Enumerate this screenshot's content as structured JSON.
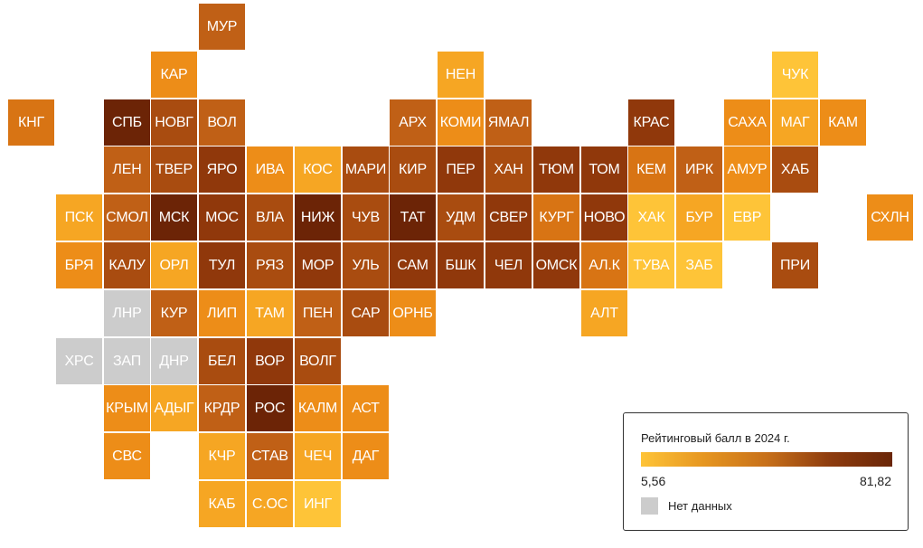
{
  "colors": {
    "c1": "#fec438",
    "c2": "#f6a623",
    "c3": "#ed8d18",
    "c4": "#d87414",
    "c5": "#c06016",
    "c6": "#a94c10",
    "c7": "#90380b",
    "c8": "#6c2406",
    "nodata": "#cccccc"
  },
  "legend": {
    "title": "Рейтинговый балл в 2024 г.",
    "min": "5,56",
    "max": "81,82",
    "no_data_label": "Нет данных"
  },
  "regions": [
    {
      "label": "МУР",
      "row": 0,
      "col": 4,
      "color": "c5"
    },
    {
      "label": "КАР",
      "row": 1,
      "col": 3,
      "color": "c3"
    },
    {
      "label": "НЕН",
      "row": 1,
      "col": 9,
      "color": "c2"
    },
    {
      "label": "ЧУК",
      "row": 1,
      "col": 16,
      "color": "c1"
    },
    {
      "label": "КНГ",
      "row": 2,
      "col": 0,
      "color": "c4"
    },
    {
      "label": "СПБ",
      "row": 2,
      "col": 2,
      "color": "c8"
    },
    {
      "label": "НОВГ",
      "row": 2,
      "col": 3,
      "color": "c6"
    },
    {
      "label": "ВОЛ",
      "row": 2,
      "col": 4,
      "color": "c5"
    },
    {
      "label": "АРХ",
      "row": 2,
      "col": 8,
      "color": "c5"
    },
    {
      "label": "КОМИ",
      "row": 2,
      "col": 9,
      "color": "c3"
    },
    {
      "label": "ЯМАЛ",
      "row": 2,
      "col": 10,
      "color": "c5"
    },
    {
      "label": "КРАС",
      "row": 2,
      "col": 13,
      "color": "c7"
    },
    {
      "label": "САХА",
      "row": 2,
      "col": 15,
      "color": "c3"
    },
    {
      "label": "МАГ",
      "row": 2,
      "col": 16,
      "color": "c2"
    },
    {
      "label": "КАМ",
      "row": 2,
      "col": 17,
      "color": "c3"
    },
    {
      "label": "ЛЕН",
      "row": 3,
      "col": 2,
      "color": "c5"
    },
    {
      "label": "ТВЕР",
      "row": 3,
      "col": 3,
      "color": "c6"
    },
    {
      "label": "ЯРО",
      "row": 3,
      "col": 4,
      "color": "c7"
    },
    {
      "label": "ИВА",
      "row": 3,
      "col": 5,
      "color": "c3"
    },
    {
      "label": "КОС",
      "row": 3,
      "col": 6,
      "color": "c2"
    },
    {
      "label": "МАРИ",
      "row": 3,
      "col": 7,
      "color": "c6"
    },
    {
      "label": "КИР",
      "row": 3,
      "col": 8,
      "color": "c6"
    },
    {
      "label": "ПЕР",
      "row": 3,
      "col": 9,
      "color": "c7"
    },
    {
      "label": "ХАН",
      "row": 3,
      "col": 10,
      "color": "c6"
    },
    {
      "label": "ТЮМ",
      "row": 3,
      "col": 11,
      "color": "c7"
    },
    {
      "label": "ТОМ",
      "row": 3,
      "col": 12,
      "color": "c7"
    },
    {
      "label": "КЕМ",
      "row": 3,
      "col": 13,
      "color": "c4"
    },
    {
      "label": "ИРК",
      "row": 3,
      "col": 14,
      "color": "c5"
    },
    {
      "label": "АМУР",
      "row": 3,
      "col": 15,
      "color": "c3"
    },
    {
      "label": "ХАБ",
      "row": 3,
      "col": 16,
      "color": "c6"
    },
    {
      "label": "ПСК",
      "row": 4,
      "col": 1,
      "color": "c2"
    },
    {
      "label": "СМОЛ",
      "row": 4,
      "col": 2,
      "color": "c5"
    },
    {
      "label": "МСК",
      "row": 4,
      "col": 3,
      "color": "c8"
    },
    {
      "label": "МОС",
      "row": 4,
      "col": 4,
      "color": "c7"
    },
    {
      "label": "ВЛА",
      "row": 4,
      "col": 5,
      "color": "c6"
    },
    {
      "label": "НИЖ",
      "row": 4,
      "col": 6,
      "color": "c8"
    },
    {
      "label": "ЧУВ",
      "row": 4,
      "col": 7,
      "color": "c6"
    },
    {
      "label": "ТАТ",
      "row": 4,
      "col": 8,
      "color": "c8"
    },
    {
      "label": "УДМ",
      "row": 4,
      "col": 9,
      "color": "c6"
    },
    {
      "label": "СВЕР",
      "row": 4,
      "col": 10,
      "color": "c7"
    },
    {
      "label": "КУРГ",
      "row": 4,
      "col": 11,
      "color": "c4"
    },
    {
      "label": "НОВО",
      "row": 4,
      "col": 12,
      "color": "c7"
    },
    {
      "label": "ХАК",
      "row": 4,
      "col": 13,
      "color": "c1"
    },
    {
      "label": "БУР",
      "row": 4,
      "col": 14,
      "color": "c2"
    },
    {
      "label": "ЕВР",
      "row": 4,
      "col": 15,
      "color": "c1"
    },
    {
      "label": "СХЛН",
      "row": 4,
      "col": 18,
      "color": "c3"
    },
    {
      "label": "БРЯ",
      "row": 5,
      "col": 1,
      "color": "c3"
    },
    {
      "label": "КАЛУ",
      "row": 5,
      "col": 2,
      "color": "c6"
    },
    {
      "label": "ОРЛ",
      "row": 5,
      "col": 3,
      "color": "c2"
    },
    {
      "label": "ТУЛ",
      "row": 5,
      "col": 4,
      "color": "c7"
    },
    {
      "label": "РЯЗ",
      "row": 5,
      "col": 5,
      "color": "c6"
    },
    {
      "label": "МОР",
      "row": 5,
      "col": 6,
      "color": "c7"
    },
    {
      "label": "УЛЬ",
      "row": 5,
      "col": 7,
      "color": "c6"
    },
    {
      "label": "САМ",
      "row": 5,
      "col": 8,
      "color": "c7"
    },
    {
      "label": "БШК",
      "row": 5,
      "col": 9,
      "color": "c7"
    },
    {
      "label": "ЧЕЛ",
      "row": 5,
      "col": 10,
      "color": "c7"
    },
    {
      "label": "ОМСК",
      "row": 5,
      "col": 11,
      "color": "c7"
    },
    {
      "label": "АЛ.К",
      "row": 5,
      "col": 12,
      "color": "c4"
    },
    {
      "label": "ТУВА",
      "row": 5,
      "col": 13,
      "color": "c1"
    },
    {
      "label": "ЗАБ",
      "row": 5,
      "col": 14,
      "color": "c1"
    },
    {
      "label": "ПРИ",
      "row": 5,
      "col": 16,
      "color": "c6"
    },
    {
      "label": "ЛНР",
      "row": 6,
      "col": 2,
      "color": "nodata"
    },
    {
      "label": "КУР",
      "row": 6,
      "col": 3,
      "color": "c5"
    },
    {
      "label": "ЛИП",
      "row": 6,
      "col": 4,
      "color": "c3"
    },
    {
      "label": "ТАМ",
      "row": 6,
      "col": 5,
      "color": "c2"
    },
    {
      "label": "ПЕН",
      "row": 6,
      "col": 6,
      "color": "c5"
    },
    {
      "label": "САР",
      "row": 6,
      "col": 7,
      "color": "c6"
    },
    {
      "label": "ОРНБ",
      "row": 6,
      "col": 8,
      "color": "c3"
    },
    {
      "label": "АЛТ",
      "row": 6,
      "col": 12,
      "color": "c2"
    },
    {
      "label": "ХРС",
      "row": 7,
      "col": 1,
      "color": "nodata"
    },
    {
      "label": "ЗАП",
      "row": 7,
      "col": 2,
      "color": "nodata"
    },
    {
      "label": "ДНР",
      "row": 7,
      "col": 3,
      "color": "nodata"
    },
    {
      "label": "БЕЛ",
      "row": 7,
      "col": 4,
      "color": "c6"
    },
    {
      "label": "ВОР",
      "row": 7,
      "col": 5,
      "color": "c7"
    },
    {
      "label": "ВОЛГ",
      "row": 7,
      "col": 6,
      "color": "c6"
    },
    {
      "label": "КРЫМ",
      "row": 8,
      "col": 2,
      "color": "c3"
    },
    {
      "label": "АДЫГ",
      "row": 8,
      "col": 3,
      "color": "c2"
    },
    {
      "label": "КРДР",
      "row": 8,
      "col": 4,
      "color": "c5"
    },
    {
      "label": "РОС",
      "row": 8,
      "col": 5,
      "color": "c8"
    },
    {
      "label": "КАЛМ",
      "row": 8,
      "col": 6,
      "color": "c3"
    },
    {
      "label": "АСТ",
      "row": 8,
      "col": 7,
      "color": "c3"
    },
    {
      "label": "СВС",
      "row": 9,
      "col": 2,
      "color": "c3"
    },
    {
      "label": "КЧР",
      "row": 9,
      "col": 4,
      "color": "c2"
    },
    {
      "label": "СТАВ",
      "row": 9,
      "col": 5,
      "color": "c5"
    },
    {
      "label": "ЧЕЧ",
      "row": 9,
      "col": 6,
      "color": "c2"
    },
    {
      "label": "ДАГ",
      "row": 9,
      "col": 7,
      "color": "c3"
    },
    {
      "label": "КАБ",
      "row": 10,
      "col": 4,
      "color": "c2"
    },
    {
      "label": "С.ОС",
      "row": 10,
      "col": 5,
      "color": "c2"
    },
    {
      "label": "ИНГ",
      "row": 10,
      "col": 6,
      "color": "c1"
    }
  ]
}
